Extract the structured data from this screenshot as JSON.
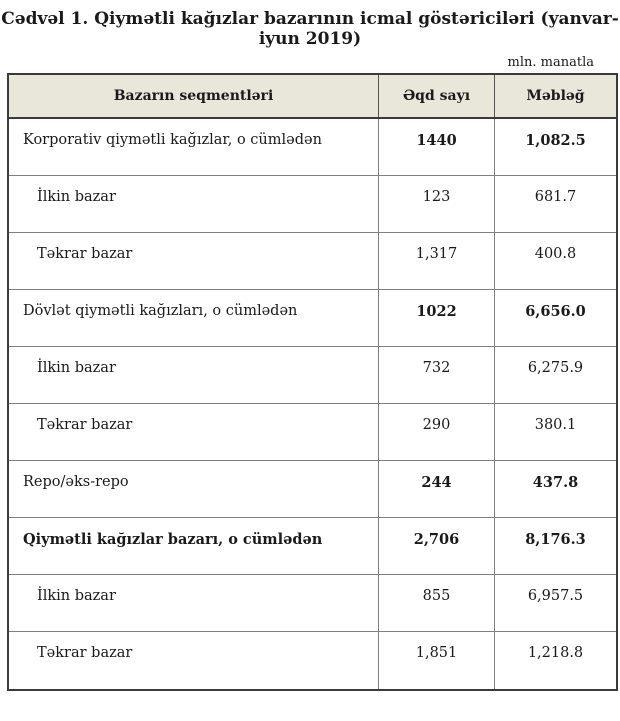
{
  "title": "Cədvəl 1. Qiymətli kağızlar bazarının icmal göstəriciləri (yanvar-iyun 2019)",
  "unit_note": "mln. manatla",
  "colors": {
    "header_bg": "#e9e6da",
    "outer_border": "#3a3a3a",
    "grid_line": "#808080",
    "text": "#1a1a1a"
  },
  "table": {
    "columns": [
      "Bazarın seqmentləri",
      "Əqd sayı",
      "Məbləğ"
    ],
    "rows": [
      {
        "label": "Korporativ qiymətli kağızlar, o cümlədən",
        "deals": "1440",
        "amount": "1,082.5",
        "label_bold": false,
        "values_bold": true,
        "indent": false
      },
      {
        "label": "İlkin bazar",
        "deals": "123",
        "amount": "681.7",
        "label_bold": false,
        "values_bold": false,
        "indent": true
      },
      {
        "label": "Təkrar bazar",
        "deals": "1,317",
        "amount": "400.8",
        "label_bold": false,
        "values_bold": false,
        "indent": true
      },
      {
        "label": "Dövlət qiymətli kağızları, o cümlədən",
        "deals": "1022",
        "amount": "6,656.0",
        "label_bold": false,
        "values_bold": true,
        "indent": false
      },
      {
        "label": "İlkin bazar",
        "deals": "732",
        "amount": "6,275.9",
        "label_bold": false,
        "values_bold": false,
        "indent": true
      },
      {
        "label": "Təkrar bazar",
        "deals": "290",
        "amount": "380.1",
        "label_bold": false,
        "values_bold": false,
        "indent": true
      },
      {
        "label": "Repo/əks-repo",
        "deals": "244",
        "amount": "437.8",
        "label_bold": false,
        "values_bold": true,
        "indent": false
      },
      {
        "label": "Qiymətli kağızlar bazarı, o cümlədən",
        "deals": "2,706",
        "amount": "8,176.3",
        "label_bold": true,
        "values_bold": true,
        "indent": false
      },
      {
        "label": "İlkin bazar",
        "deals": "855",
        "amount": "6,957.5",
        "label_bold": false,
        "values_bold": false,
        "indent": true
      },
      {
        "label": "Təkrar bazar",
        "deals": "1,851",
        "amount": "1,218.8",
        "label_bold": false,
        "values_bold": false,
        "indent": true
      }
    ]
  }
}
